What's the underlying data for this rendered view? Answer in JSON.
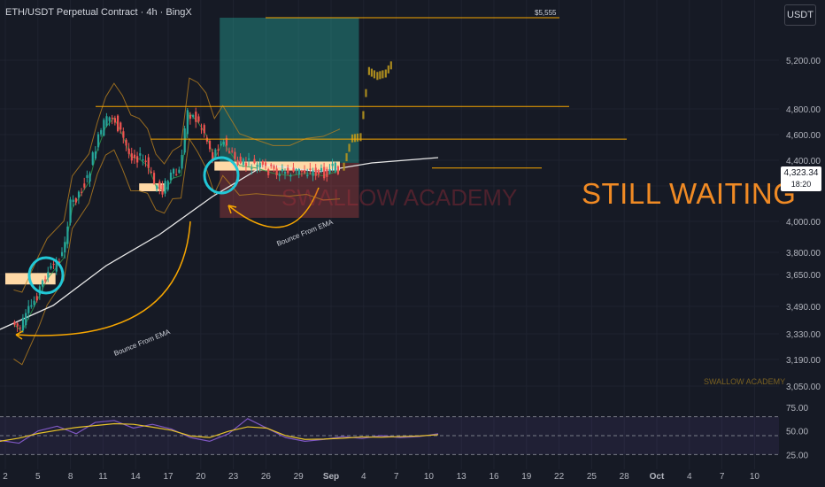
{
  "header": {
    "title": "ETH/USDT Perpetual Contract · 4h · BingX",
    "currency": "USDT"
  },
  "current_price": {
    "value": "4,323.34",
    "countdown": "18:20"
  },
  "annotations": {
    "big_text": "STILL WAITING",
    "watermark": "SWALLOW ACADEMY",
    "small_watermark": "SWALLOW ACADEMY",
    "target_label": "$5,555",
    "bounce_label_1": "Bounce From EMA",
    "bounce_label_2": "Bounce From EMA"
  },
  "colors": {
    "background": "#161a25",
    "up": "#26a69a",
    "down": "#ef5350",
    "accent": "#f7a600",
    "text_orange": "#f08a24",
    "rsi": "#7e57c2"
  },
  "chart_data": [
    {
      "type": "candlestick",
      "title": "ETH/USDT Perpetual Contract · 4h · BingX",
      "y_axis_labels": [
        "5,200.00",
        "4,800.00",
        "4,600.00",
        "4,400.00",
        "4,200.00",
        "4,000.00",
        "3,800.00",
        "3,650.00",
        "3,490.00",
        "3,330.00",
        "3,190.00",
        "3,050.00"
      ],
      "y_axis_values": [
        5200,
        4800,
        4600,
        4400,
        4200,
        4000,
        3800,
        3650,
        3490,
        3330,
        3190,
        3050
      ],
      "x_axis_labels": [
        "2",
        "5",
        "8",
        "11",
        "14",
        "17",
        "20",
        "23",
        "26",
        "29",
        "Sep",
        "4",
        "7",
        "10",
        "13",
        "16",
        "19",
        "22",
        "25",
        "28",
        "Oct",
        "4",
        "7",
        "10"
      ],
      "price_path": {
        "dates": [
          "Aug 2",
          "Aug 3",
          "Aug 5",
          "Aug 6",
          "Aug 8",
          "Aug 9",
          "Aug 11",
          "Aug 12",
          "Aug 13",
          "Aug 14",
          "Aug 15",
          "Aug 16",
          "Aug 17",
          "Aug 18",
          "Aug 19",
          "Aug 20",
          "Aug 21",
          "Aug 22",
          "Aug 23",
          "Aug 24",
          "Aug 25",
          "Aug 26",
          "Aug 27",
          "Aug 29",
          "Aug 31",
          "Sep 2",
          "Sep 4",
          "Sep 6",
          "Sep 8",
          "Sep 10"
        ],
        "values": [
          3400,
          3360,
          3550,
          3640,
          3780,
          4090,
          4250,
          4500,
          4680,
          4750,
          4620,
          4450,
          4430,
          4380,
          4220,
          4180,
          4280,
          4300,
          4790,
          4720,
          4620,
          4430,
          4560,
          4380,
          4360,
          4320,
          4300,
          4320,
          4300,
          4340
        ]
      },
      "projection": {
        "dates": [
          "Sep 10",
          "Sep 11",
          "Sep 12",
          "Sep 13",
          "Sep 14",
          "Sep 15",
          "Sep 16"
        ],
        "values": [
          4340,
          4560,
          4570,
          5100,
          5060,
          5080,
          5180
        ]
      },
      "horizontal_levels": [
        5555,
        4820,
        4565,
        4340
      ],
      "long_position": {
        "entry": 4380,
        "target": 5555,
        "stop": 4020
      },
      "support_zones": [
        {
          "low": 3600,
          "high": 3660,
          "from": "Aug 1",
          "to": "Aug 7"
        },
        {
          "low": 4170,
          "high": 4220,
          "from": "Aug 17",
          "to": "Aug 20"
        },
        {
          "low": 4320,
          "high": 4390,
          "from": "Aug 26",
          "to": "Sep 10"
        }
      ]
    },
    {
      "type": "line",
      "title": "RSI",
      "y_axis_labels": [
        "75.00",
        "50.00",
        "25.00"
      ],
      "y_axis_values": [
        75,
        50,
        25
      ],
      "levels": [
        70,
        50,
        30
      ],
      "values": [
        45,
        42,
        55,
        60,
        52,
        64,
        66,
        58,
        62,
        57,
        48,
        44,
        52,
        68,
        58,
        48,
        44,
        46,
        49,
        47,
        50,
        48,
        49,
        52
      ]
    }
  ]
}
